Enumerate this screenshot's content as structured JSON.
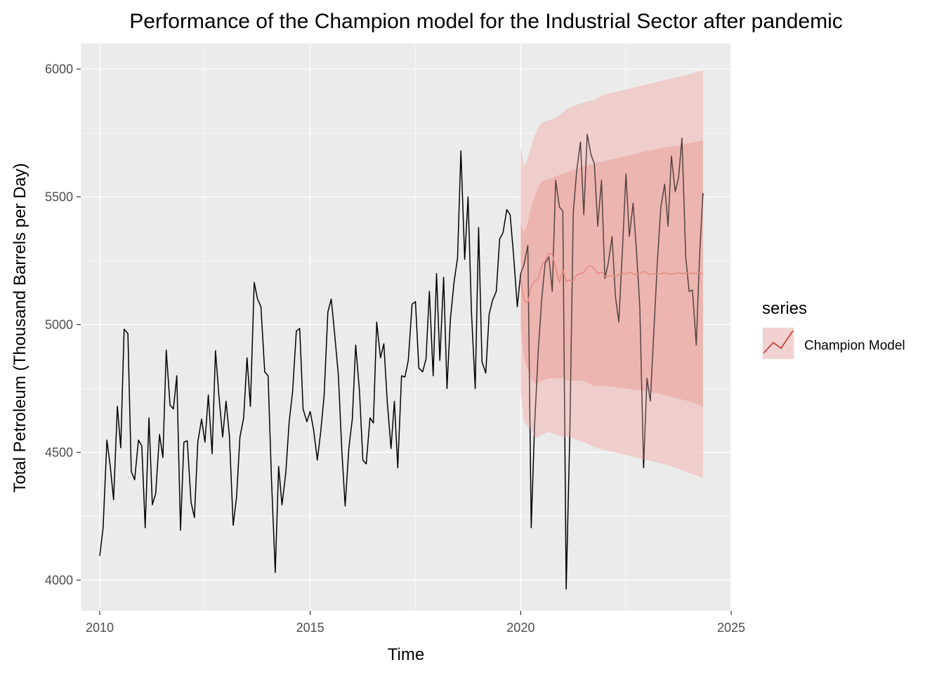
{
  "chart_data": {
    "type": "line",
    "title": "Performance of the Champion model for the Industrial Sector after pandemic",
    "xlabel": "Time",
    "ylabel": "Total Petroleum (Thousand Barrels per Day)",
    "xlim": [
      2009.55,
      2025.0
    ],
    "ylim": [
      3880,
      6100
    ],
    "x_ticks": [
      2010,
      2015,
      2020,
      2025
    ],
    "y_ticks": [
      4000,
      4500,
      5000,
      5500,
      6000
    ],
    "grid": true,
    "legend": {
      "title": "series",
      "position": "right",
      "entries": [
        "Champion Model"
      ]
    },
    "colors": {
      "panel": "#EBEBEB",
      "grid": "#FFFFFF",
      "actual": "#000000",
      "forecast": "#E06F62",
      "band80": "#E88F88",
      "band95": "#F2C1BE",
      "legend_line": "#C0392B"
    },
    "series": [
      {
        "values": [
          [
            2010.0,
            4095
          ],
          [
            2010.08,
            4205
          ],
          [
            2010.17,
            4548
          ],
          [
            2010.25,
            4445
          ],
          [
            2010.33,
            4315
          ],
          [
            2010.42,
            4680
          ],
          [
            2010.5,
            4518
          ],
          [
            2010.58,
            4982
          ],
          [
            2010.67,
            4965
          ],
          [
            2010.75,
            4425
          ],
          [
            2010.83,
            4393
          ],
          [
            2010.92,
            4548
          ],
          [
            2011.0,
            4525
          ],
          [
            2011.08,
            4205
          ],
          [
            2011.17,
            4635
          ],
          [
            2011.25,
            4295
          ],
          [
            2011.33,
            4340
          ],
          [
            2011.42,
            4570
          ],
          [
            2011.5,
            4480
          ],
          [
            2011.58,
            4900
          ],
          [
            2011.67,
            4685
          ],
          [
            2011.75,
            4670
          ],
          [
            2011.83,
            4800
          ],
          [
            2011.92,
            4195
          ],
          [
            2012.0,
            4540
          ],
          [
            2012.08,
            4545
          ],
          [
            2012.17,
            4305
          ],
          [
            2012.25,
            4245
          ],
          [
            2012.33,
            4540
          ],
          [
            2012.42,
            4630
          ],
          [
            2012.5,
            4540
          ],
          [
            2012.58,
            4725
          ],
          [
            2012.67,
            4495
          ],
          [
            2012.75,
            4898
          ],
          [
            2012.83,
            4725
          ],
          [
            2012.92,
            4560
          ],
          [
            2013.0,
            4700
          ],
          [
            2013.08,
            4565
          ],
          [
            2013.17,
            4215
          ],
          [
            2013.25,
            4325
          ],
          [
            2013.33,
            4560
          ],
          [
            2013.42,
            4635
          ],
          [
            2013.5,
            4870
          ],
          [
            2013.58,
            4680
          ],
          [
            2013.67,
            5165
          ],
          [
            2013.75,
            5100
          ],
          [
            2013.83,
            5070
          ],
          [
            2013.92,
            4815
          ],
          [
            2014.0,
            4800
          ],
          [
            2014.08,
            4395
          ],
          [
            2014.17,
            4030
          ],
          [
            2014.25,
            4445
          ],
          [
            2014.33,
            4295
          ],
          [
            2014.42,
            4420
          ],
          [
            2014.5,
            4620
          ],
          [
            2014.58,
            4735
          ],
          [
            2014.67,
            4975
          ],
          [
            2014.75,
            4985
          ],
          [
            2014.83,
            4670
          ],
          [
            2014.92,
            4620
          ],
          [
            2015.0,
            4660
          ],
          [
            2015.08,
            4590
          ],
          [
            2015.17,
            4470
          ],
          [
            2015.25,
            4580
          ],
          [
            2015.33,
            4720
          ],
          [
            2015.42,
            5050
          ],
          [
            2015.5,
            5100
          ],
          [
            2015.58,
            4965
          ],
          [
            2015.67,
            4800
          ],
          [
            2015.75,
            4510
          ],
          [
            2015.83,
            4290
          ],
          [
            2015.92,
            4520
          ],
          [
            2016.0,
            4630
          ],
          [
            2016.08,
            4920
          ],
          [
            2016.17,
            4740
          ],
          [
            2016.25,
            4470
          ],
          [
            2016.33,
            4455
          ],
          [
            2016.42,
            4635
          ],
          [
            2016.5,
            4615
          ],
          [
            2016.58,
            5010
          ],
          [
            2016.67,
            4870
          ],
          [
            2016.75,
            4925
          ],
          [
            2016.83,
            4700
          ],
          [
            2016.92,
            4515
          ],
          [
            2017.0,
            4700
          ],
          [
            2017.08,
            4440
          ],
          [
            2017.17,
            4800
          ],
          [
            2017.25,
            4795
          ],
          [
            2017.33,
            4860
          ],
          [
            2017.42,
            5080
          ],
          [
            2017.5,
            5090
          ],
          [
            2017.58,
            4830
          ],
          [
            2017.67,
            4815
          ],
          [
            2017.75,
            4865
          ],
          [
            2017.83,
            5130
          ],
          [
            2017.92,
            4800
          ],
          [
            2018.0,
            5200
          ],
          [
            2018.08,
            4860
          ],
          [
            2018.17,
            5185
          ],
          [
            2018.25,
            4750
          ],
          [
            2018.33,
            5020
          ],
          [
            2018.42,
            5170
          ],
          [
            2018.5,
            5260
          ],
          [
            2018.58,
            5680
          ],
          [
            2018.67,
            5255
          ],
          [
            2018.75,
            5500
          ],
          [
            2018.83,
            5050
          ],
          [
            2018.92,
            4750
          ],
          [
            2019.0,
            5380
          ],
          [
            2019.08,
            4855
          ],
          [
            2019.17,
            4810
          ],
          [
            2019.25,
            5040
          ],
          [
            2019.33,
            5095
          ],
          [
            2019.42,
            5130
          ],
          [
            2019.5,
            5335
          ],
          [
            2019.58,
            5360
          ],
          [
            2019.67,
            5450
          ],
          [
            2019.75,
            5430
          ],
          [
            2019.83,
            5275
          ],
          [
            2019.92,
            5070
          ],
          [
            2020.0,
            5200
          ],
          [
            2020.08,
            5235
          ],
          [
            2020.17,
            5310
          ],
          [
            2020.25,
            4205
          ],
          [
            2020.33,
            4605
          ],
          [
            2020.42,
            4905
          ],
          [
            2020.5,
            5100
          ],
          [
            2020.58,
            5240
          ],
          [
            2020.67,
            5265
          ],
          [
            2020.75,
            5130
          ],
          [
            2020.83,
            5565
          ],
          [
            2020.92,
            5460
          ],
          [
            2021.0,
            5445
          ],
          [
            2021.08,
            3965
          ],
          [
            2021.17,
            4590
          ],
          [
            2021.25,
            5440
          ],
          [
            2021.33,
            5600
          ],
          [
            2021.42,
            5715
          ],
          [
            2021.5,
            5430
          ],
          [
            2021.58,
            5745
          ],
          [
            2021.67,
            5665
          ],
          [
            2021.75,
            5630
          ],
          [
            2021.83,
            5385
          ],
          [
            2021.92,
            5565
          ],
          [
            2022.0,
            5180
          ],
          [
            2022.08,
            5240
          ],
          [
            2022.17,
            5345
          ],
          [
            2022.25,
            5110
          ],
          [
            2022.33,
            5010
          ],
          [
            2022.42,
            5305
          ],
          [
            2022.5,
            5590
          ],
          [
            2022.58,
            5345
          ],
          [
            2022.67,
            5475
          ],
          [
            2022.75,
            5290
          ],
          [
            2022.83,
            5070
          ],
          [
            2022.92,
            4440
          ],
          [
            2023.0,
            4790
          ],
          [
            2023.08,
            4700
          ],
          [
            2023.17,
            4995
          ],
          [
            2023.25,
            5255
          ],
          [
            2023.33,
            5460
          ],
          [
            2023.42,
            5550
          ],
          [
            2023.5,
            5385
          ],
          [
            2023.58,
            5660
          ],
          [
            2023.67,
            5520
          ],
          [
            2023.75,
            5575
          ],
          [
            2023.83,
            5730
          ],
          [
            2023.92,
            5265
          ],
          [
            2024.0,
            5130
          ],
          [
            2024.08,
            5135
          ],
          [
            2024.17,
            4920
          ],
          [
            2024.25,
            5270
          ],
          [
            2024.33,
            5515
          ]
        ]
      },
      {
        "name": "Champion Model",
        "values": [
          [
            2020.0,
            5180
          ],
          [
            2020.08,
            5095
          ],
          [
            2020.17,
            5085
          ],
          [
            2020.25,
            5150
          ],
          [
            2020.33,
            5170
          ],
          [
            2020.42,
            5180
          ],
          [
            2020.5,
            5230
          ],
          [
            2020.58,
            5250
          ],
          [
            2020.67,
            5280
          ],
          [
            2020.75,
            5275
          ],
          [
            2020.83,
            5220
          ],
          [
            2020.92,
            5165
          ],
          [
            2021.0,
            5215
          ],
          [
            2021.08,
            5170
          ],
          [
            2021.17,
            5175
          ],
          [
            2021.25,
            5170
          ],
          [
            2021.33,
            5195
          ],
          [
            2021.42,
            5200
          ],
          [
            2021.5,
            5205
          ],
          [
            2021.58,
            5225
          ],
          [
            2021.67,
            5230
          ],
          [
            2021.75,
            5220
          ],
          [
            2021.83,
            5200
          ],
          [
            2021.92,
            5205
          ],
          [
            2022.0,
            5190
          ],
          [
            2022.08,
            5188
          ],
          [
            2022.17,
            5192
          ],
          [
            2022.25,
            5190
          ],
          [
            2022.33,
            5195
          ],
          [
            2022.42,
            5200
          ],
          [
            2022.5,
            5198
          ],
          [
            2022.58,
            5205
          ],
          [
            2022.67,
            5200
          ],
          [
            2022.75,
            5195
          ],
          [
            2022.83,
            5200
          ],
          [
            2022.92,
            5208
          ],
          [
            2023.0,
            5200
          ],
          [
            2023.08,
            5195
          ],
          [
            2023.17,
            5200
          ],
          [
            2023.25,
            5198
          ],
          [
            2023.33,
            5200
          ],
          [
            2023.42,
            5202
          ],
          [
            2023.5,
            5200
          ],
          [
            2023.58,
            5198
          ],
          [
            2023.67,
            5200
          ],
          [
            2023.75,
            5202
          ],
          [
            2023.83,
            5200
          ],
          [
            2023.92,
            5200
          ],
          [
            2024.0,
            5201
          ],
          [
            2024.08,
            5200
          ],
          [
            2024.17,
            5200
          ],
          [
            2024.25,
            5201
          ],
          [
            2024.33,
            5200
          ]
        ]
      }
    ],
    "intervals": {
      "x": [
        2020.0,
        2020.08,
        2020.17,
        2020.25,
        2020.33,
        2020.42,
        2020.5,
        2020.67,
        2020.83,
        2021.0,
        2021.17,
        2021.5,
        2021.75,
        2022.0,
        2022.5,
        2023.0,
        2023.5,
        2024.0,
        2024.33
      ],
      "lo80": [
        4990,
        4870,
        4820,
        4790,
        4770,
        4770,
        4780,
        4790,
        4790,
        4790,
        4780,
        4780,
        4760,
        4760,
        4750,
        4740,
        4720,
        4700,
        4680
      ],
      "hi80": [
        5400,
        5360,
        5400,
        5460,
        5500,
        5540,
        5560,
        5570,
        5580,
        5590,
        5600,
        5620,
        5630,
        5640,
        5660,
        5680,
        5695,
        5710,
        5720
      ],
      "lo95": [
        4740,
        4620,
        4600,
        4590,
        4560,
        4560,
        4570,
        4580,
        4570,
        4560,
        4560,
        4540,
        4520,
        4510,
        4490,
        4470,
        4450,
        4420,
        4400
      ],
      "hi95": [
        5690,
        5620,
        5650,
        5700,
        5740,
        5770,
        5790,
        5800,
        5810,
        5830,
        5850,
        5870,
        5880,
        5900,
        5920,
        5940,
        5960,
        5980,
        5995
      ]
    }
  }
}
